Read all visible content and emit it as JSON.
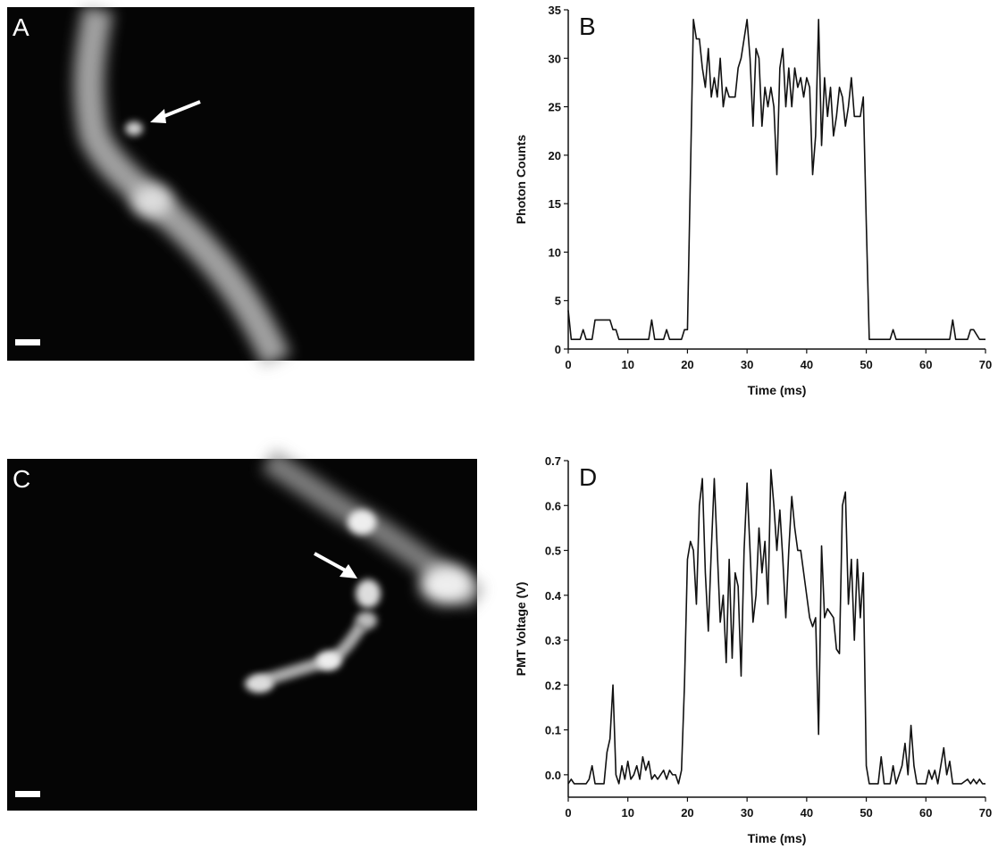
{
  "images": [
    {
      "label": "A"
    },
    {
      "label": "C"
    }
  ],
  "chart_data": [
    {
      "type": "line",
      "panel_label": "B",
      "xlabel": "Time (ms)",
      "ylabel": "Photon Counts",
      "color": "#111111",
      "xlim": [
        0,
        70
      ],
      "xticks": [
        0,
        10,
        20,
        30,
        40,
        50,
        60,
        70
      ],
      "ylim": [
        0,
        35
      ],
      "yticks": [
        0,
        5,
        10,
        15,
        20,
        25,
        30,
        35
      ],
      "x": [
        0,
        0.5,
        1,
        2,
        2.5,
        3,
        4,
        4.5,
        5,
        7,
        7.5,
        8,
        8.5,
        10,
        13.5,
        14,
        14.5,
        16,
        16.5,
        17,
        19,
        19.5,
        20,
        20.5,
        21,
        21.5,
        22,
        22.5,
        23,
        23.5,
        24,
        24.5,
        25,
        25.5,
        26,
        26.5,
        27,
        27.5,
        28,
        28.5,
        29,
        29.5,
        30,
        30.5,
        31,
        31.5,
        32,
        32.5,
        33,
        33.5,
        34,
        34.5,
        35,
        35.5,
        36,
        36.5,
        37,
        37.5,
        38,
        38.5,
        39,
        39.5,
        40,
        40.5,
        41,
        41.5,
        42,
        42.5,
        43,
        43.5,
        44,
        44.5,
        45,
        45.5,
        46,
        46.5,
        47,
        47.5,
        48,
        48.5,
        49,
        49.5,
        50,
        50.5,
        51,
        54,
        54.5,
        55,
        64,
        64.5,
        65,
        67,
        67.5,
        68,
        69,
        70
      ],
      "values": [
        4,
        1,
        1,
        1,
        2,
        1,
        1,
        3,
        3,
        3,
        2,
        2,
        1,
        1,
        1,
        3,
        1,
        1,
        2,
        1,
        1,
        2,
        2,
        18,
        34,
        32,
        32,
        29,
        27,
        31,
        26,
        28,
        26,
        30,
        25,
        27,
        26,
        26,
        26,
        29,
        30,
        32,
        34,
        30,
        23,
        31,
        30,
        23,
        27,
        25,
        27,
        25,
        18,
        29,
        31,
        25,
        29,
        25,
        29,
        27,
        28,
        26,
        28,
        27,
        18,
        22,
        34,
        21,
        28,
        24,
        27,
        22,
        24,
        27,
        26,
        23,
        25,
        28,
        24,
        24,
        24,
        26,
        13,
        1,
        1,
        1,
        2,
        1,
        1,
        3,
        1,
        1,
        2,
        2,
        1,
        1
      ]
    },
    {
      "type": "line",
      "panel_label": "D",
      "xlabel": "Time (ms)",
      "ylabel": "PMT Voltage (V)",
      "color": "#111111",
      "xlim": [
        0,
        70
      ],
      "xticks": [
        0,
        10,
        20,
        30,
        40,
        50,
        60,
        70
      ],
      "ylim": [
        -0.05,
        0.7
      ],
      "yticks": [
        {
          "value": 0,
          "label": "0.0"
        },
        0.1,
        0.2,
        0.3,
        0.4,
        0.5,
        0.6,
        0.7
      ],
      "x": [
        0,
        0.5,
        1,
        2,
        3,
        3.5,
        4,
        4.5,
        6,
        6.5,
        7,
        7.5,
        8,
        8.5,
        9,
        9.5,
        10,
        10.5,
        11,
        11.5,
        12,
        12.5,
        13,
        13.5,
        14,
        14.5,
        15,
        16,
        16.5,
        17,
        17.5,
        18,
        18.5,
        19,
        19.5,
        20,
        20.5,
        21,
        21.5,
        22,
        22.5,
        23,
        23.5,
        24,
        24.5,
        25,
        25.5,
        26,
        26.5,
        27,
        27.5,
        28,
        28.5,
        29,
        29.5,
        30,
        30.5,
        31,
        31.5,
        32,
        32.5,
        33,
        33.5,
        34,
        34.5,
        35,
        35.5,
        36,
        36.5,
        37,
        37.5,
        38,
        38.5,
        39,
        39.5,
        40,
        40.5,
        41,
        41.5,
        42,
        42.5,
        43,
        43.5,
        44,
        44.5,
        45,
        45.5,
        46,
        46.5,
        47,
        47.5,
        48,
        48.5,
        49,
        49.5,
        50,
        50.5,
        51,
        52,
        52.5,
        53,
        54,
        54.5,
        55,
        56,
        56.5,
        57,
        57.5,
        58,
        58.5,
        60,
        60.5,
        61,
        61.5,
        62,
        63,
        63.5,
        64,
        64.5,
        66,
        67,
        67.5,
        68,
        68.5,
        69,
        69.5,
        70
      ],
      "values": [
        -0.02,
        -0.01,
        -0.02,
        -0.02,
        -0.02,
        -0.01,
        0.02,
        -0.02,
        -0.02,
        0.05,
        0.08,
        0.2,
        0.0,
        -0.02,
        0.02,
        -0.01,
        0.03,
        -0.01,
        0.0,
        0.02,
        -0.01,
        0.04,
        0.01,
        0.03,
        -0.01,
        0.0,
        -0.01,
        0.01,
        -0.01,
        0.01,
        0.0,
        0.0,
        -0.02,
        0.01,
        0.2,
        0.48,
        0.52,
        0.5,
        0.38,
        0.6,
        0.66,
        0.45,
        0.32,
        0.5,
        0.66,
        0.5,
        0.34,
        0.4,
        0.25,
        0.48,
        0.26,
        0.45,
        0.42,
        0.22,
        0.5,
        0.65,
        0.5,
        0.34,
        0.4,
        0.55,
        0.45,
        0.52,
        0.38,
        0.68,
        0.6,
        0.5,
        0.59,
        0.48,
        0.35,
        0.5,
        0.62,
        0.55,
        0.5,
        0.5,
        0.45,
        0.4,
        0.35,
        0.33,
        0.35,
        0.09,
        0.51,
        0.35,
        0.37,
        0.36,
        0.35,
        0.28,
        0.27,
        0.6,
        0.63,
        0.38,
        0.48,
        0.3,
        0.48,
        0.35,
        0.45,
        0.02,
        -0.02,
        -0.02,
        -0.02,
        0.04,
        -0.02,
        -0.02,
        0.02,
        -0.02,
        0.02,
        0.07,
        0.0,
        0.11,
        0.02,
        -0.02,
        -0.02,
        0.01,
        -0.01,
        0.01,
        -0.02,
        0.06,
        0.0,
        0.03,
        -0.02,
        -0.02,
        -0.01,
        -0.02,
        -0.01,
        -0.02,
        -0.01,
        -0.02,
        -0.02
      ]
    }
  ]
}
